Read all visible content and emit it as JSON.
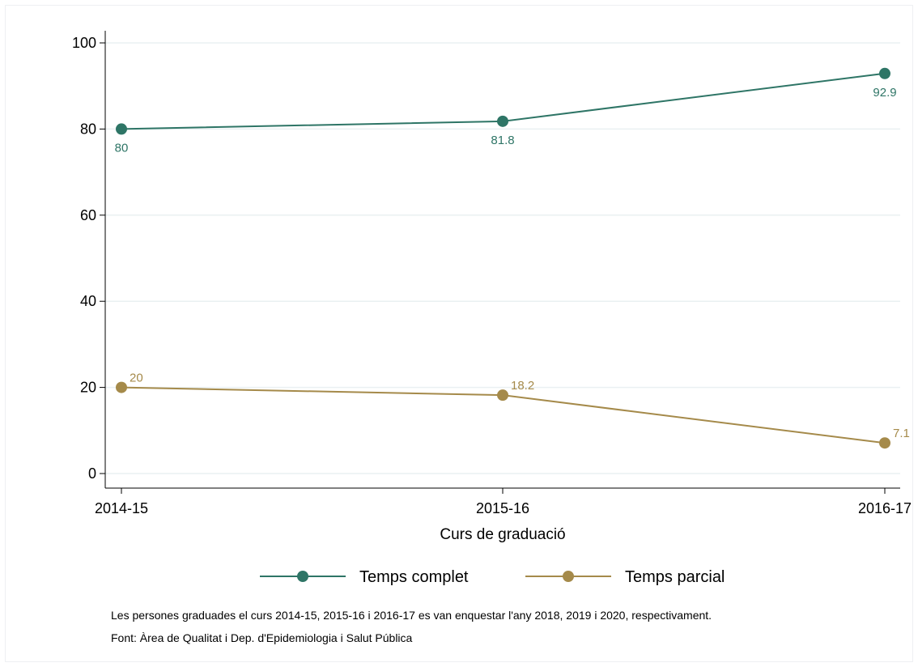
{
  "chart_data": {
    "type": "line",
    "xlabel": "Curs de graduació",
    "ylabel": "",
    "categories": [
      "2014-15",
      "2015-16",
      "2016-17"
    ],
    "ylim": [
      0,
      100
    ],
    "yticks": [
      0,
      20,
      40,
      60,
      80,
      100
    ],
    "grid": true,
    "legend_position": "bottom",
    "series": [
      {
        "name": "Temps complet",
        "color": "#2e7566",
        "values": [
          80,
          81.8,
          92.9
        ],
        "labels": [
          "80",
          "81.8",
          "92.9"
        ]
      },
      {
        "name": "Temps parcial",
        "color": "#a58a4a",
        "values": [
          20,
          18.2,
          7.1
        ],
        "labels": [
          "20",
          "18.2",
          "7.1"
        ]
      }
    ]
  },
  "notes": {
    "line1": "Les persones graduades el curs 2014-15, 2015-16 i 2016-17 es van enquestar l'any 2018, 2019 i 2020, respectivament.",
    "line2": "Font: Àrea de Qualitat i Dep. d'Epidemiologia i Salut Pública"
  }
}
